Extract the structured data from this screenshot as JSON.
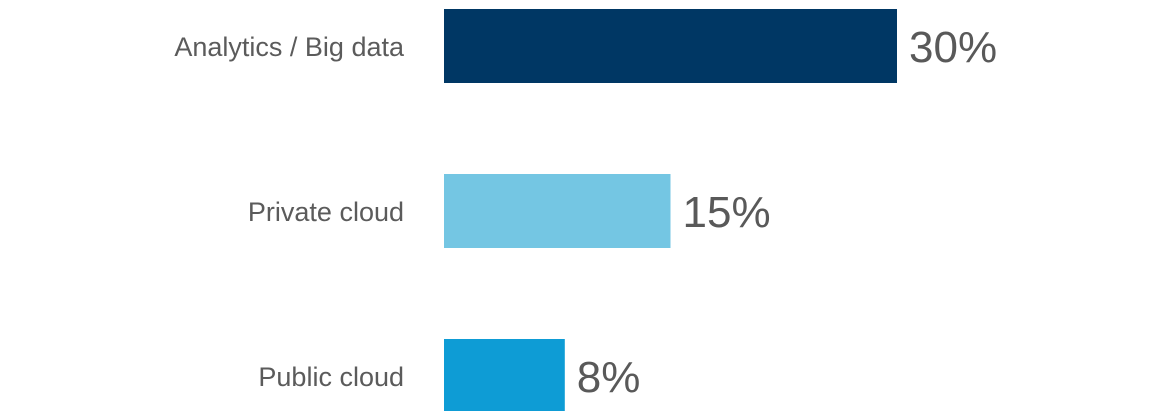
{
  "chart_data": {
    "type": "bar",
    "orientation": "horizontal",
    "categories": [
      "Analytics / Big data",
      "Private cloud",
      "Public cloud"
    ],
    "values": [
      30,
      15,
      8
    ],
    "value_labels": [
      "30%",
      "15%",
      "8%"
    ],
    "unit": "%",
    "xlim": [
      0,
      30
    ],
    "grid": false,
    "legend": "none",
    "colors": [
      "#003764",
      "#74C6E3",
      "#0E9CD5"
    ],
    "label_color": "#5b5b5b",
    "value_label_color": "#595959"
  }
}
